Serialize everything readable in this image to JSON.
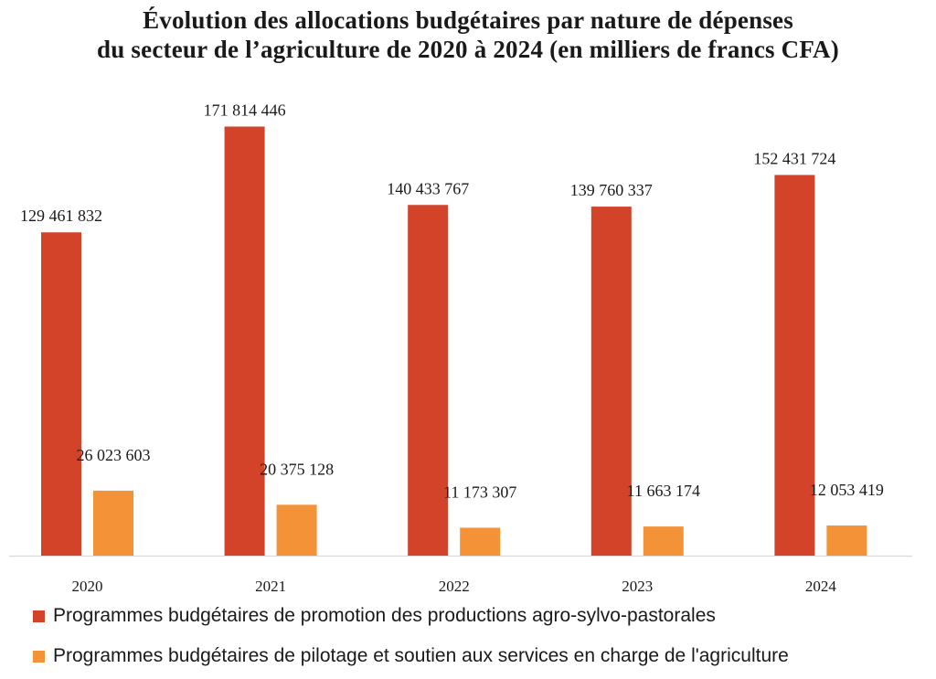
{
  "chart_data": {
    "type": "bar",
    "title_lines": [
      "Évolution des allocations budgétaires par nature de dépenses",
      "du secteur de l’agriculture de 2020 à 2024 (en milliers de francs CFA)"
    ],
    "categories": [
      "2020",
      "2021",
      "2022",
      "2023",
      "2024"
    ],
    "series": [
      {
        "name": "Programmes budgétaires de promotion des productions agro-sylvo-pastorales",
        "color": "#d2432a",
        "values": [
          129461832,
          171814446,
          140433767,
          139760337,
          152431724
        ],
        "labels": [
          "129 461 832",
          "171 814 446",
          "140 433 767",
          "139 760 337",
          "152 431 724"
        ]
      },
      {
        "name": "Programmes budgétaires de pilotage et soutien aux services en charge de l'agriculture",
        "color": "#f39237",
        "values": [
          26023603,
          20375128,
          11173307,
          11663174,
          12053419
        ],
        "labels": [
          "26 023 603",
          "20 375 128",
          "11 173 307",
          "11 663 174",
          "12 053 419"
        ]
      }
    ],
    "ylim": [
      0,
      172000000
    ],
    "grid": false,
    "legend_position": "bottom-left"
  }
}
